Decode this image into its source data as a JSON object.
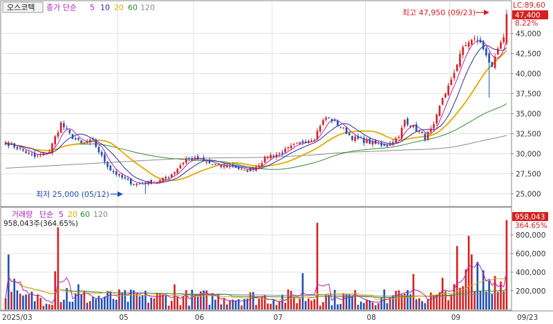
{
  "colors": {
    "up": "#d42020",
    "down": "#1f4fb3",
    "ma5": "#b21fb2",
    "ma10": "#2a2a9a",
    "ma20": "#e0a800",
    "ma60": "#2e8b2e",
    "ma120": "#888888",
    "grid": "#e2e2e2",
    "frame": "#8a8a8a"
  },
  "header": {
    "stock_name": "오스코텍",
    "ma_title": "종가 단순",
    "ma_periods": [
      "5",
      "10",
      "20",
      "60",
      "120"
    ],
    "lc_label": "LC:89,60"
  },
  "price_panel": {
    "current_price_label": "47,400",
    "current_change_label": "8.22%",
    "high_annotation": "최고 47,950 (09/23)",
    "low_annotation": "최저 25,000 (05/12)",
    "y_ticks": [
      "45,000",
      "42,500",
      "40,000",
      "37,500",
      "35,000",
      "32,500",
      "30,000",
      "27,500",
      "25,000"
    ]
  },
  "volume_panel": {
    "title": "거래량",
    "ma_title": "단순",
    "ma_periods": [
      "5",
      "20",
      "60",
      "120"
    ],
    "current_volume_text": "958,043주(364.65%)",
    "current_volume_label": "958,043",
    "current_ratio_label": "364.65%",
    "y_ticks": [
      "800,000",
      "600,000",
      "400,000",
      "200,000"
    ]
  },
  "x_axis": {
    "month_labels": [
      "2025/03",
      "05",
      "06",
      "07",
      "08",
      "09"
    ],
    "end_label": "09/23"
  },
  "chart_data": {
    "type": "candlestick",
    "price_range": [
      23500,
      49000
    ],
    "volume_range": [
      0,
      1000000
    ],
    "high": {
      "value": 47950,
      "date": "09/23"
    },
    "low": {
      "value": 25000,
      "date": "05/12"
    },
    "months": [
      {
        "label": "2025/03",
        "start_index": 0
      },
      {
        "label": "05",
        "start_index": 39
      },
      {
        "label": "06",
        "start_index": 65
      },
      {
        "label": "07",
        "start_index": 92
      },
      {
        "label": "08",
        "start_index": 124
      },
      {
        "label": "09",
        "start_index": 153
      }
    ],
    "anchors": [
      [
        0,
        31400
      ],
      [
        5,
        30600
      ],
      [
        10,
        29600
      ],
      [
        15,
        30300
      ],
      [
        19,
        33800
      ],
      [
        22,
        32400
      ],
      [
        26,
        31200
      ],
      [
        30,
        31600
      ],
      [
        33,
        29600
      ],
      [
        36,
        28000
      ],
      [
        40,
        27000
      ],
      [
        44,
        26200
      ],
      [
        48,
        26400
      ],
      [
        52,
        26500
      ],
      [
        55,
        26900
      ],
      [
        58,
        27800
      ],
      [
        62,
        29400
      ],
      [
        66,
        29300
      ],
      [
        70,
        28800
      ],
      [
        74,
        28400
      ],
      [
        78,
        28500
      ],
      [
        82,
        27800
      ],
      [
        86,
        28400
      ],
      [
        90,
        29700
      ],
      [
        94,
        30000
      ],
      [
        98,
        30800
      ],
      [
        102,
        31500
      ],
      [
        106,
        32000
      ],
      [
        108,
        33600
      ],
      [
        110,
        34500
      ],
      [
        112,
        34200
      ],
      [
        115,
        33400
      ],
      [
        119,
        32000
      ],
      [
        123,
        31600
      ],
      [
        127,
        31200
      ],
      [
        131,
        31100
      ],
      [
        135,
        32000
      ],
      [
        137,
        34200
      ],
      [
        141,
        33000
      ],
      [
        144,
        32000
      ],
      [
        147,
        33400
      ],
      [
        150,
        37000
      ],
      [
        153,
        39000
      ],
      [
        156,
        42500
      ],
      [
        159,
        44000
      ],
      [
        162,
        44300
      ],
      [
        165,
        42500
      ],
      [
        167,
        40500
      ],
      [
        169,
        43000
      ],
      [
        171,
        44200
      ],
      [
        172,
        47400
      ]
    ],
    "volume_spikes": [
      [
        1,
        590000
      ],
      [
        3,
        330000
      ],
      [
        6,
        150000
      ],
      [
        17,
        410000
      ],
      [
        18,
        880000
      ],
      [
        21,
        230000
      ],
      [
        25,
        270000
      ],
      [
        58,
        270000
      ],
      [
        102,
        390000
      ],
      [
        107,
        930000
      ],
      [
        134,
        200000
      ],
      [
        140,
        380000
      ],
      [
        150,
        340000
      ],
      [
        155,
        680000
      ],
      [
        158,
        430000
      ],
      [
        159,
        790000
      ],
      [
        160,
        590000
      ],
      [
        162,
        510000
      ],
      [
        164,
        420000
      ],
      [
        166,
        310000
      ],
      [
        168,
        360000
      ],
      [
        170,
        300000
      ],
      [
        172,
        958043
      ]
    ]
  }
}
